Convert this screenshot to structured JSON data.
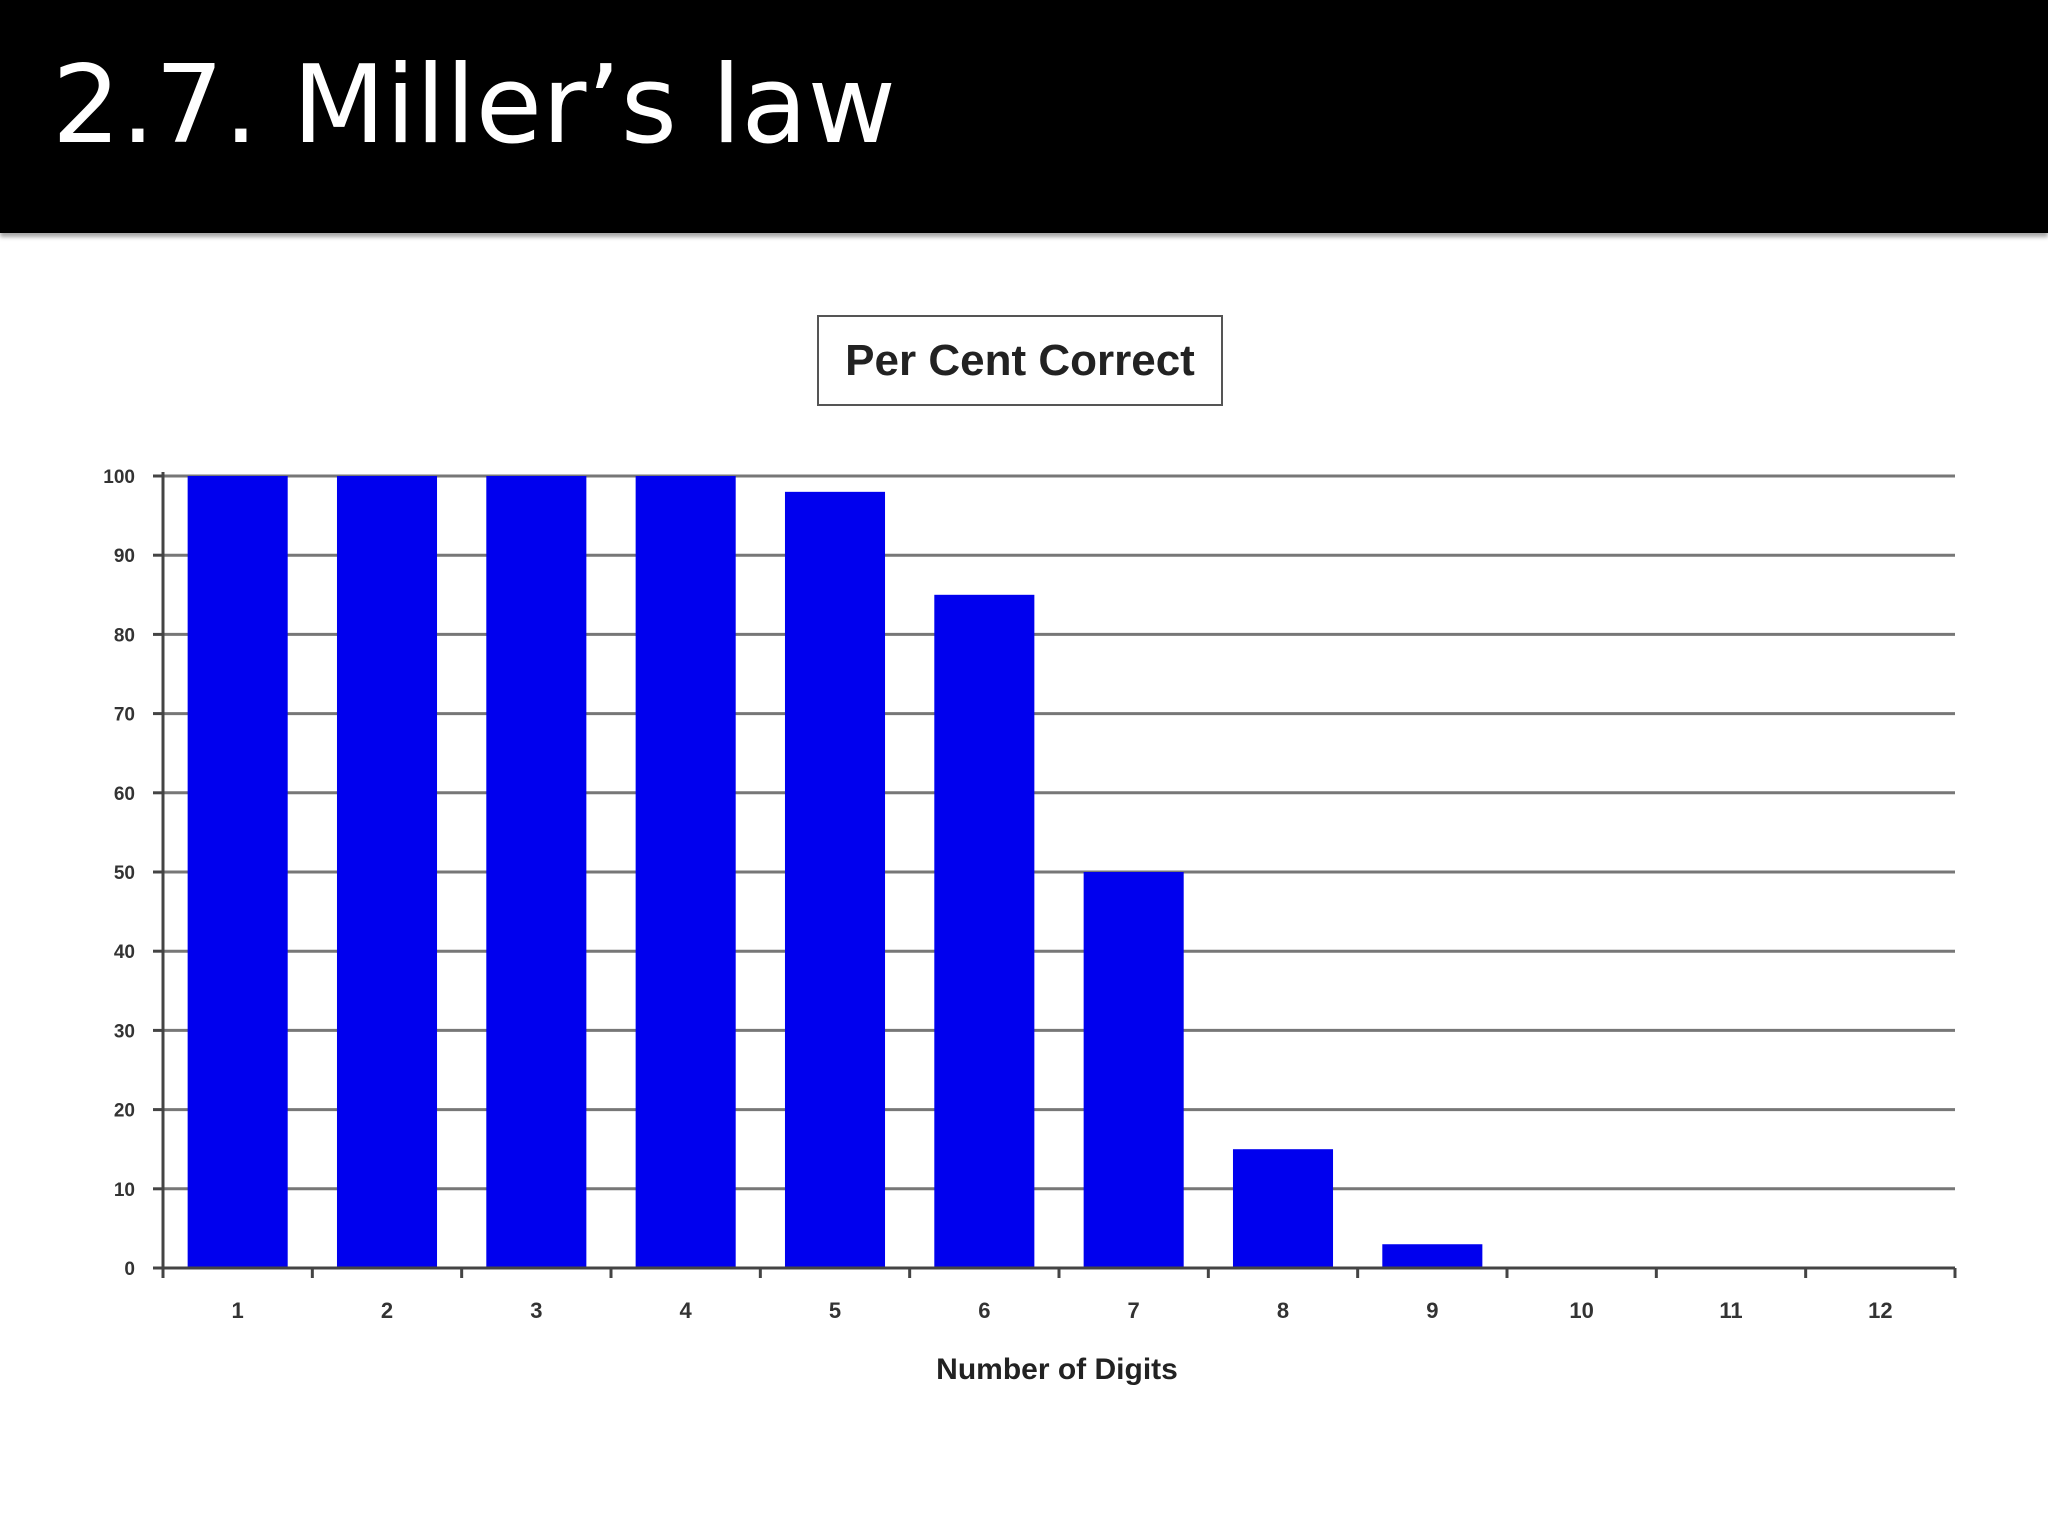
{
  "slide": {
    "title": "2.7. Miller’s law"
  },
  "chart_data": {
    "type": "bar",
    "title": "Per Cent Correct",
    "xlabel": "Number of Digits",
    "ylabel": "",
    "categories": [
      "1",
      "2",
      "3",
      "4",
      "5",
      "6",
      "7",
      "8",
      "9",
      "10",
      "11",
      "12"
    ],
    "values": [
      100,
      100,
      100,
      100,
      98,
      85,
      50,
      15,
      3,
      0,
      0,
      0
    ],
    "ylim": [
      0,
      100
    ],
    "yticks": [
      0,
      10,
      20,
      30,
      40,
      50,
      60,
      70,
      80,
      90,
      100
    ],
    "grid": true,
    "legend": "none",
    "colors": {
      "bar": "#0000ee",
      "grid": "#777777",
      "axis": "#444444",
      "header_background": "#000000"
    }
  }
}
